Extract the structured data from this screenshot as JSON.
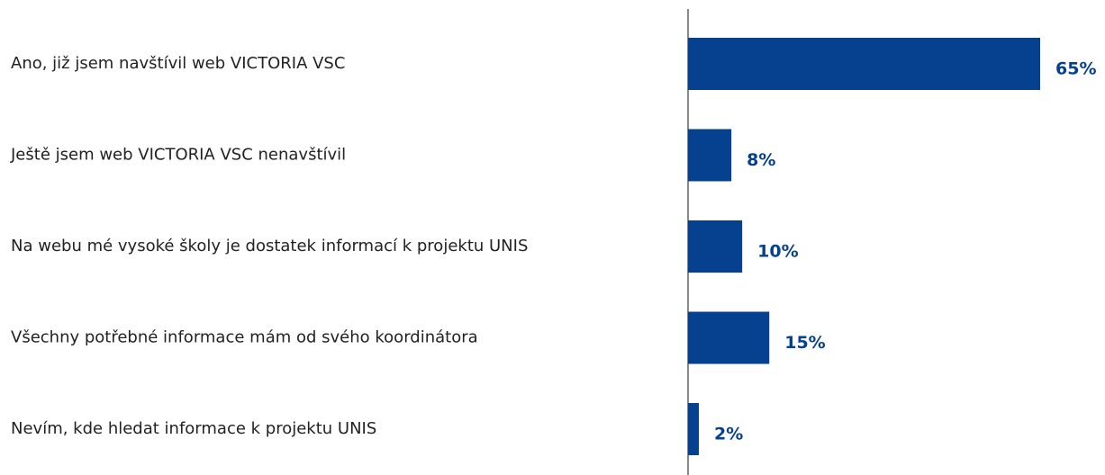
{
  "chart_data": {
    "type": "bar",
    "orientation": "horizontal",
    "categories": [
      "Ano, již jsem navštívil web VICTORIA VSC",
      "Ještě jsem web VICTORIA VSC nenavštívil",
      "Na webu mé vysoké školy je dostatek informací k projektu UNIS",
      "Všechny potřebné informace mám od svého koordinátora",
      "Nevím, kde hledat informace k projektu UNIS"
    ],
    "values": [
      65,
      8,
      10,
      15,
      2
    ],
    "value_labels": [
      "65%",
      "8%",
      "10%",
      "15%",
      "2%"
    ],
    "color": "#06418f"
  }
}
